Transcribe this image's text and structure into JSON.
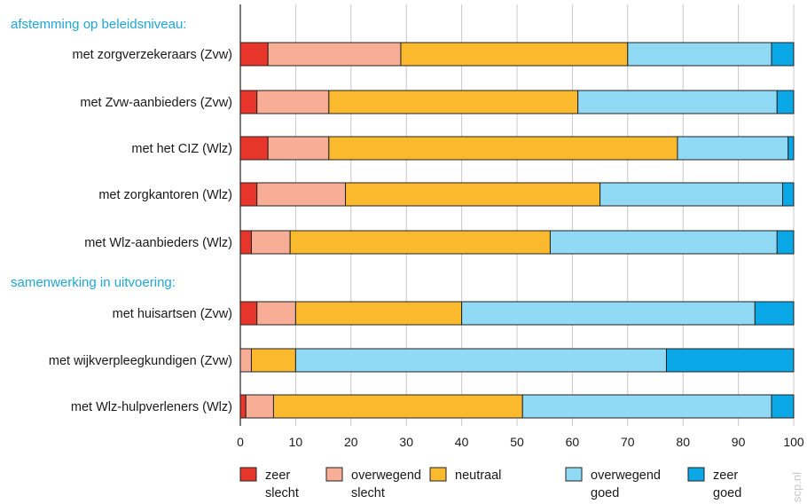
{
  "chart_data": {
    "type": "bar",
    "orientation": "horizontal",
    "stacked": true,
    "groups": [
      {
        "heading": "afstemming op beleidsniveau:",
        "categories": [
          "met zorgverzekeraars (Zvw)",
          "met Zvw-aanbieders (Zvw)",
          "met het CIZ (Wlz)",
          "met zorgkantoren (Wlz)",
          "met Wlz-aanbieders (Wlz)"
        ]
      },
      {
        "heading": "samenwerking in uitvoering:",
        "categories": [
          "met huisartsen (Zvw)",
          "met wijkverpleegkundigen (Zvw)",
          "met Wlz-hulpverleners (Wlz)"
        ]
      }
    ],
    "series": [
      {
        "name": "zeer slecht",
        "label_lines": [
          "zeer",
          "slecht"
        ],
        "color": "#e8352b",
        "values": [
          5,
          3,
          5,
          3,
          2,
          3,
          0,
          1
        ]
      },
      {
        "name": "overwegend slecht",
        "label_lines": [
          "overwegend",
          "slecht"
        ],
        "color": "#f7ad96",
        "values": [
          24,
          13,
          11,
          16,
          7,
          7,
          2,
          5
        ]
      },
      {
        "name": "neutraal",
        "label_lines": [
          "neutraal"
        ],
        "color": "#fbb92e",
        "values": [
          41,
          45,
          63,
          46,
          47,
          30,
          8,
          45
        ]
      },
      {
        "name": "overwegend goed",
        "label_lines": [
          "overwegend",
          "goed"
        ],
        "color": "#91daf6",
        "values": [
          26,
          36,
          20,
          33,
          41,
          53,
          67,
          45
        ]
      },
      {
        "name": "zeer goed",
        "label_lines": [
          "zeer",
          "goed"
        ],
        "color": "#0aa8e6",
        "values": [
          4,
          3,
          1,
          2,
          3,
          7,
          23,
          4
        ]
      }
    ],
    "x_ticks": [
      0,
      10,
      20,
      30,
      40,
      50,
      60,
      70,
      80,
      90,
      100
    ],
    "xlim": [
      0,
      100
    ],
    "grid": true,
    "legend_position": "bottom",
    "heading_color": "#1fa7d8",
    "watermark": "scp.nl"
  }
}
